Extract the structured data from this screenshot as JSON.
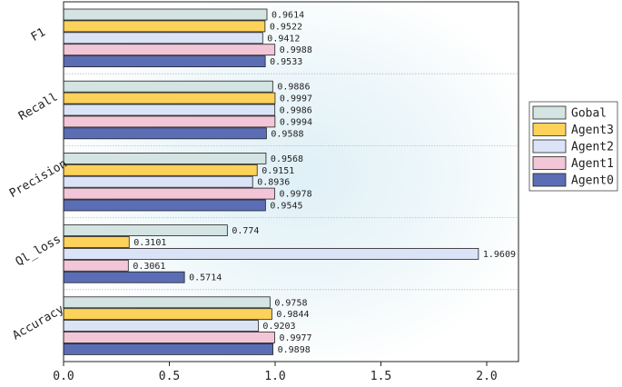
{
  "chart_data": {
    "type": "bar",
    "orientation": "horizontal",
    "title": "",
    "xlabel": "",
    "ylabel": "",
    "xlim": [
      0,
      2.15
    ],
    "xticks": [
      "0.0",
      "0.5",
      "1.0",
      "1.5",
      "2.0"
    ],
    "xtick_values": [
      0,
      0.5,
      1.0,
      1.5,
      2.0
    ],
    "categories": [
      "F1",
      "Recall",
      "Precision",
      "Ql_loss",
      "Accuracy"
    ],
    "legend_position": "right",
    "series": [
      {
        "name": "Gobal",
        "color": "#d3e4e2",
        "values": [
          0.9614,
          0.9886,
          0.9568,
          0.774,
          0.9758
        ],
        "labels": [
          "0.9614",
          "0.9886",
          "0.9568",
          "0.774",
          "0.9758"
        ]
      },
      {
        "name": "Agent3",
        "color": "#fdd25a",
        "values": [
          0.9522,
          0.9997,
          0.9151,
          0.3101,
          0.9844
        ],
        "labels": [
          "0.9522",
          "0.9997",
          "0.9151",
          "0.3101",
          "0.9844"
        ]
      },
      {
        "name": "Agent2",
        "color": "#dbe3f7",
        "values": [
          0.9412,
          0.9986,
          0.8936,
          1.9609,
          0.9203
        ],
        "labels": [
          "0.9412",
          "0.9986",
          "0.8936",
          "1.9609",
          "0.9203"
        ]
      },
      {
        "name": "Agent1",
        "color": "#f2c6d6",
        "values": [
          0.9988,
          0.9994,
          0.9978,
          0.3061,
          0.9977
        ],
        "labels": [
          "0.9988",
          "0.9994",
          "0.9978",
          "0.3061",
          "0.9977"
        ]
      },
      {
        "name": "Agent0",
        "color": "#5b6db5",
        "values": [
          0.9533,
          0.9588,
          0.9545,
          0.5714,
          0.9898
        ],
        "labels": [
          "0.9533",
          "0.9588",
          "0.9545",
          "0.5714",
          "0.9898"
        ]
      }
    ]
  }
}
